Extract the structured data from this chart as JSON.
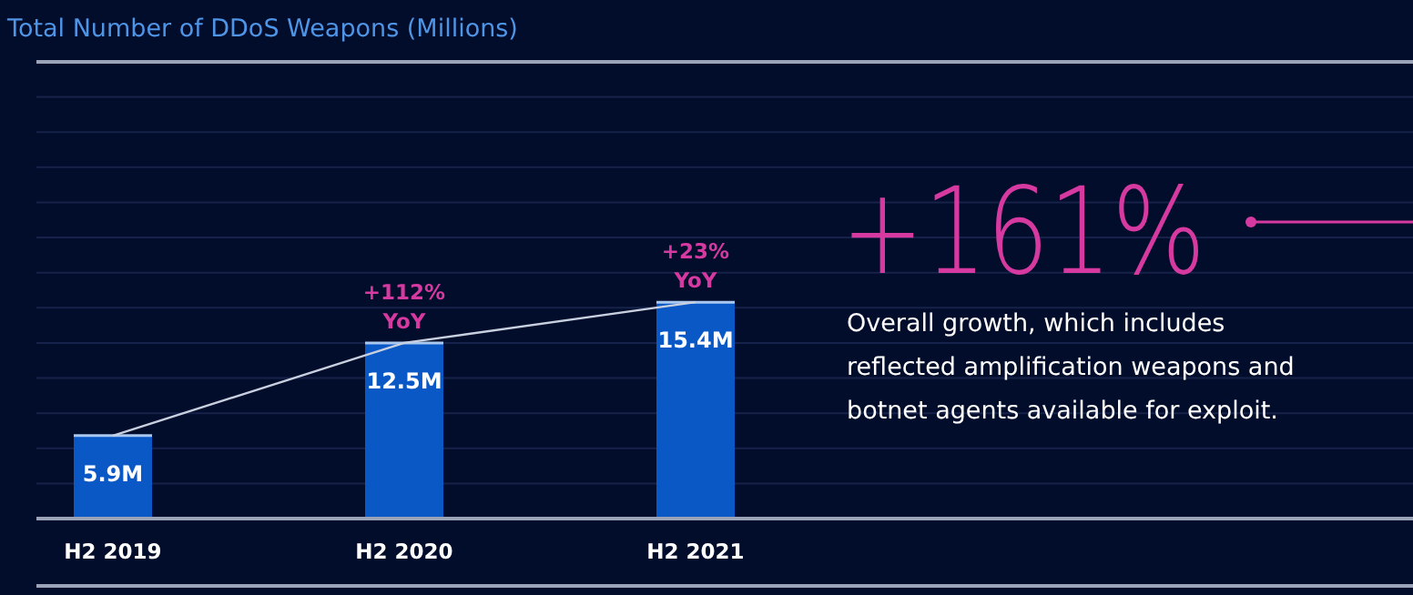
{
  "chart_data": {
    "type": "bar",
    "title": "Total Number of DDoS Weapons (Millions)",
    "categories": [
      "H2 2019",
      "H2 2020",
      "H2 2021"
    ],
    "ylim": [
      0,
      32.5
    ],
    "yticks": [
      {
        "value": 0,
        "label": null
      },
      {
        "value": 2.5,
        "label": null
      },
      {
        "value": 5,
        "label": null
      },
      {
        "value": 7.5,
        "label": null
      },
      {
        "value": 10,
        "label": null
      },
      {
        "value": 12.5,
        "label": null
      },
      {
        "value": 15,
        "label": null
      },
      {
        "value": 17.5,
        "label": null
      },
      {
        "value": 20,
        "label": null
      },
      {
        "value": 22.5,
        "label": null
      },
      {
        "value": 25,
        "label": null
      },
      {
        "value": 27.5,
        "label": null
      },
      {
        "value": 30,
        "label": null
      },
      {
        "value": 32.5,
        "label": null
      }
    ],
    "grid": "y",
    "tick_labels": "x",
    "series": [
      {
        "color": "#0a57c6",
        "values": [
          5.9,
          12.5,
          15.4
        ],
        "value_labels": [
          "5.9M",
          "12.5M",
          "15.4M"
        ]
      },
      {
        "type": "line",
        "color": "#c8d0e0",
        "values": [
          5.9,
          12.5,
          15.4
        ]
      }
    ],
    "annotations": [
      {
        "text": "+112%\nYoY",
        "x": "H2 2020",
        "y": 12.5
      },
      {
        "text": "+23%\nYoY",
        "x": "H2 2021",
        "y": 15.4
      },
      "+161%",
      "Overall growth, which includes reflected amplification weapons and botnet agents available for exploit."
    ]
  }
}
